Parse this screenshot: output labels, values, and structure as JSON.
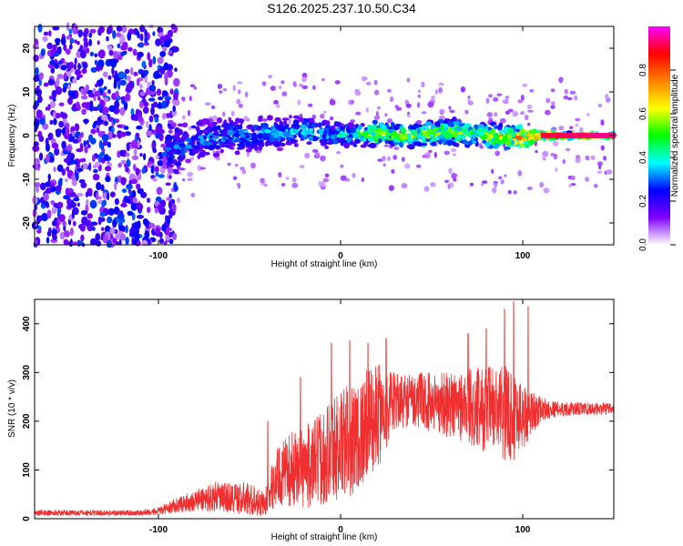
{
  "title": "S126.2025.237.10.50.C34",
  "chart_data": [
    {
      "type": "heatmap",
      "xlabel": "Height of straight line (km)",
      "ylabel": "Frequency (Hz)",
      "xlim": [
        -168,
        150
      ],
      "ylim": [
        -25,
        25
      ],
      "xticks": [
        -100,
        0,
        100
      ],
      "yticks": [
        -20,
        -10,
        0,
        10,
        20
      ],
      "colorbar": {
        "label": "Normalized spectral amplitude",
        "range": [
          0,
          1
        ],
        "ticks": [
          0.0,
          0.2,
          0.4,
          0.6,
          0.8
        ],
        "colors": [
          "#ffffff",
          "#8000ff",
          "#0000ff",
          "#00ffff",
          "#00ff00",
          "#ffff00",
          "#ff8000",
          "#ff0000",
          "#ff00ff"
        ]
      },
      "background_noise": {
        "x_range": [
          -168,
          -95
        ],
        "y_range": [
          -25,
          25
        ],
        "amplitude": 0.25
      },
      "band_center": [
        [
          -95,
          -4
        ],
        [
          -80,
          -1
        ],
        [
          -60,
          0
        ],
        [
          -40,
          0.5
        ],
        [
          -20,
          1
        ],
        [
          0,
          0
        ],
        [
          20,
          0.5
        ],
        [
          40,
          0
        ],
        [
          60,
          1
        ],
        [
          80,
          0
        ],
        [
          100,
          -0.5
        ],
        [
          110,
          0
        ],
        [
          150,
          0
        ]
      ],
      "band_halfwidth": [
        [
          -95,
          8
        ],
        [
          -80,
          5
        ],
        [
          -40,
          4
        ],
        [
          0,
          3
        ],
        [
          60,
          3
        ],
        [
          100,
          3
        ],
        [
          110,
          0.8
        ],
        [
          150,
          0.5
        ]
      ],
      "band_peak_amplitude": [
        [
          -95,
          0.3
        ],
        [
          -40,
          0.35
        ],
        [
          0,
          0.4
        ],
        [
          20,
          0.6
        ],
        [
          80,
          0.55
        ],
        [
          110,
          0.9
        ],
        [
          150,
          0.95
        ]
      ]
    },
    {
      "type": "line",
      "xlabel": "Height of straight line (km)",
      "ylabel": "SNR (10 * v/v)",
      "xlim": [
        -168,
        150
      ],
      "ylim": [
        0,
        450
      ],
      "xticks": [
        -100,
        0,
        100
      ],
      "yticks": [
        0,
        100,
        200,
        300,
        400
      ],
      "color": "#f03030",
      "envelope": {
        "x": [
          -168,
          -110,
          -100,
          -90,
          -70,
          -50,
          -42,
          -35,
          -25,
          -15,
          -5,
          0,
          10,
          20,
          30,
          40,
          60,
          80,
          95,
          100,
          110,
          120,
          150
        ],
        "mean": [
          12,
          12,
          15,
          28,
          45,
          40,
          30,
          85,
          105,
          110,
          145,
          150,
          175,
          210,
          240,
          245,
          235,
          225,
          215,
          210,
          225,
          225,
          225
        ],
        "spread": [
          6,
          6,
          8,
          15,
          30,
          35,
          25,
          60,
          80,
          90,
          110,
          115,
          120,
          110,
          60,
          55,
          70,
          90,
          100,
          70,
          25,
          15,
          12
        ],
        "peaks": [
          [
            -40,
            200
          ],
          [
            -22,
            290
          ],
          [
            -5,
            360
          ],
          [
            5,
            365
          ],
          [
            15,
            360
          ],
          [
            25,
            370
          ],
          [
            70,
            380
          ],
          [
            80,
            390
          ],
          [
            90,
            430
          ],
          [
            95,
            445
          ],
          [
            103,
            435
          ]
        ]
      }
    }
  ]
}
